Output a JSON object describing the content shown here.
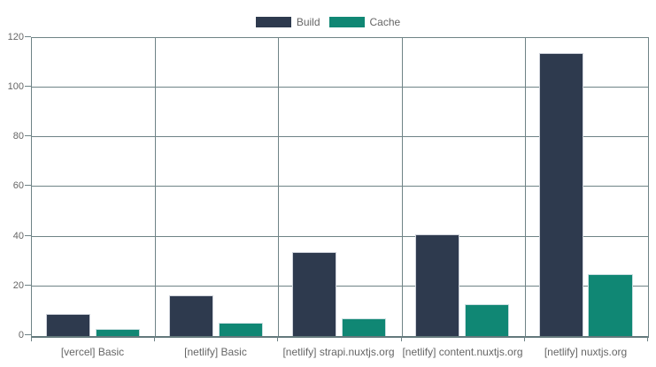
{
  "chart_data": {
    "type": "bar",
    "title": "",
    "xlabel": "",
    "ylabel": "",
    "categories": [
      "[vercel] Basic",
      "[netlify] Basic",
      "[netlify] strapi.nuxtjs.org",
      "[netlify] content.nuxtjs.org",
      "[netlify] nuxtjs.org"
    ],
    "series": [
      {
        "name": "Build",
        "color": "#2e3a4e",
        "values": [
          9,
          16.5,
          34,
          41,
          114
        ]
      },
      {
        "name": "Cache",
        "color": "#108774",
        "values": [
          3,
          5.5,
          7,
          13,
          25
        ]
      }
    ],
    "ylim": [
      0,
      120
    ],
    "yticks": [
      0,
      20,
      40,
      60,
      80,
      100,
      120
    ],
    "grid": true,
    "legend_position": "top"
  },
  "colors": {
    "build": "#2e3a4e",
    "cache": "#108774",
    "gridline": "#6f8386",
    "tick_text": "#666666",
    "background": "#ffffff"
  }
}
